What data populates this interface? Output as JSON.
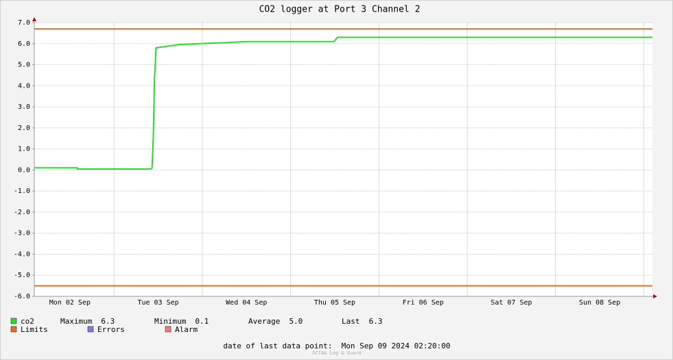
{
  "chart_data": {
    "type": "line",
    "title": "CO2 logger at Port 3 Channel 2",
    "xlim": [
      "2024-09-02T02:20",
      "2024-09-09T02:20"
    ],
    "xticks": [
      {
        "value": "2024-09-02T12:00",
        "label": "Mon 02 Sep"
      },
      {
        "value": "2024-09-03T12:00",
        "label": "Tue 03 Sep"
      },
      {
        "value": "2024-09-04T12:00",
        "label": "Wed 04 Sep"
      },
      {
        "value": "2024-09-05T12:00",
        "label": "Thu 05 Sep"
      },
      {
        "value": "2024-09-06T12:00",
        "label": "Fri 06 Sep"
      },
      {
        "value": "2024-09-07T12:00",
        "label": "Sat 07 Sep"
      },
      {
        "value": "2024-09-08T12:00",
        "label": "Sun 08 Sep"
      }
    ],
    "x_major_grid": [
      "2024-09-03T00:00",
      "2024-09-04T00:00",
      "2024-09-05T00:00",
      "2024-09-06T00:00",
      "2024-09-07T00:00",
      "2024-09-08T00:00",
      "2024-09-09T00:00"
    ],
    "ylim": [
      -6,
      7
    ],
    "yticks": [
      {
        "value": 7,
        "label": "7.0"
      },
      {
        "value": 6,
        "label": "6.0"
      },
      {
        "value": 5,
        "label": "5.0"
      },
      {
        "value": 4,
        "label": "4.0"
      },
      {
        "value": 3,
        "label": "3.0"
      },
      {
        "value": 2,
        "label": "2.0"
      },
      {
        "value": 1,
        "label": "1.0"
      },
      {
        "value": 0,
        "label": "0.0"
      },
      {
        "value": -1,
        "label": "-1.0"
      },
      {
        "value": -2,
        "label": "-2.0"
      },
      {
        "value": -3,
        "label": "-3.0"
      },
      {
        "value": -4,
        "label": "-4.0"
      },
      {
        "value": -5,
        "label": "-5.0"
      },
      {
        "value": -6,
        "label": "-6.0"
      }
    ],
    "grid": true,
    "x": [
      "2024-09-02T02:20",
      "2024-09-02T14:00",
      "2024-09-02T14:00",
      "2024-09-03T10:00",
      "2024-09-03T10:20",
      "2024-09-03T10:40",
      "2024-09-03T11:00",
      "2024-09-03T11:25",
      "2024-09-03T13:25",
      "2024-09-03T17:30",
      "2024-09-03T23:05",
      "2024-09-04T06:40",
      "2024-09-04T12:15",
      "2024-09-05T11:45",
      "2024-09-05T12:45",
      "2024-09-09T02:20"
    ],
    "series": [
      {
        "name": "co2",
        "color": "#22e022",
        "values": [
          0.1,
          0.1,
          0.05,
          0.05,
          0.1,
          1.5,
          4.3,
          5.8,
          5.85,
          5.95,
          6.0,
          6.05,
          6.1,
          6.1,
          6.3,
          6.3
        ]
      }
    ],
    "limits": {
      "name": "Limits",
      "color": "#e07020",
      "values": [
        6.7,
        -5.5
      ]
    },
    "extra_legend": [
      {
        "name": "Errors",
        "color": "#7b7bef"
      },
      {
        "name": "Alarm",
        "color": "#ef7b7b"
      }
    ],
    "stats": [
      {
        "name": "Maximum",
        "value": "6.3"
      },
      {
        "name": "Minimum",
        "value": "0.1"
      },
      {
        "name": "Average",
        "value": "5.0"
      },
      {
        "name": "Last",
        "value": "6.3"
      }
    ],
    "footer": "date of last data point:  Mon Sep 09 2024 02:20:00",
    "watermark": "OCTA& Log & Guard"
  }
}
